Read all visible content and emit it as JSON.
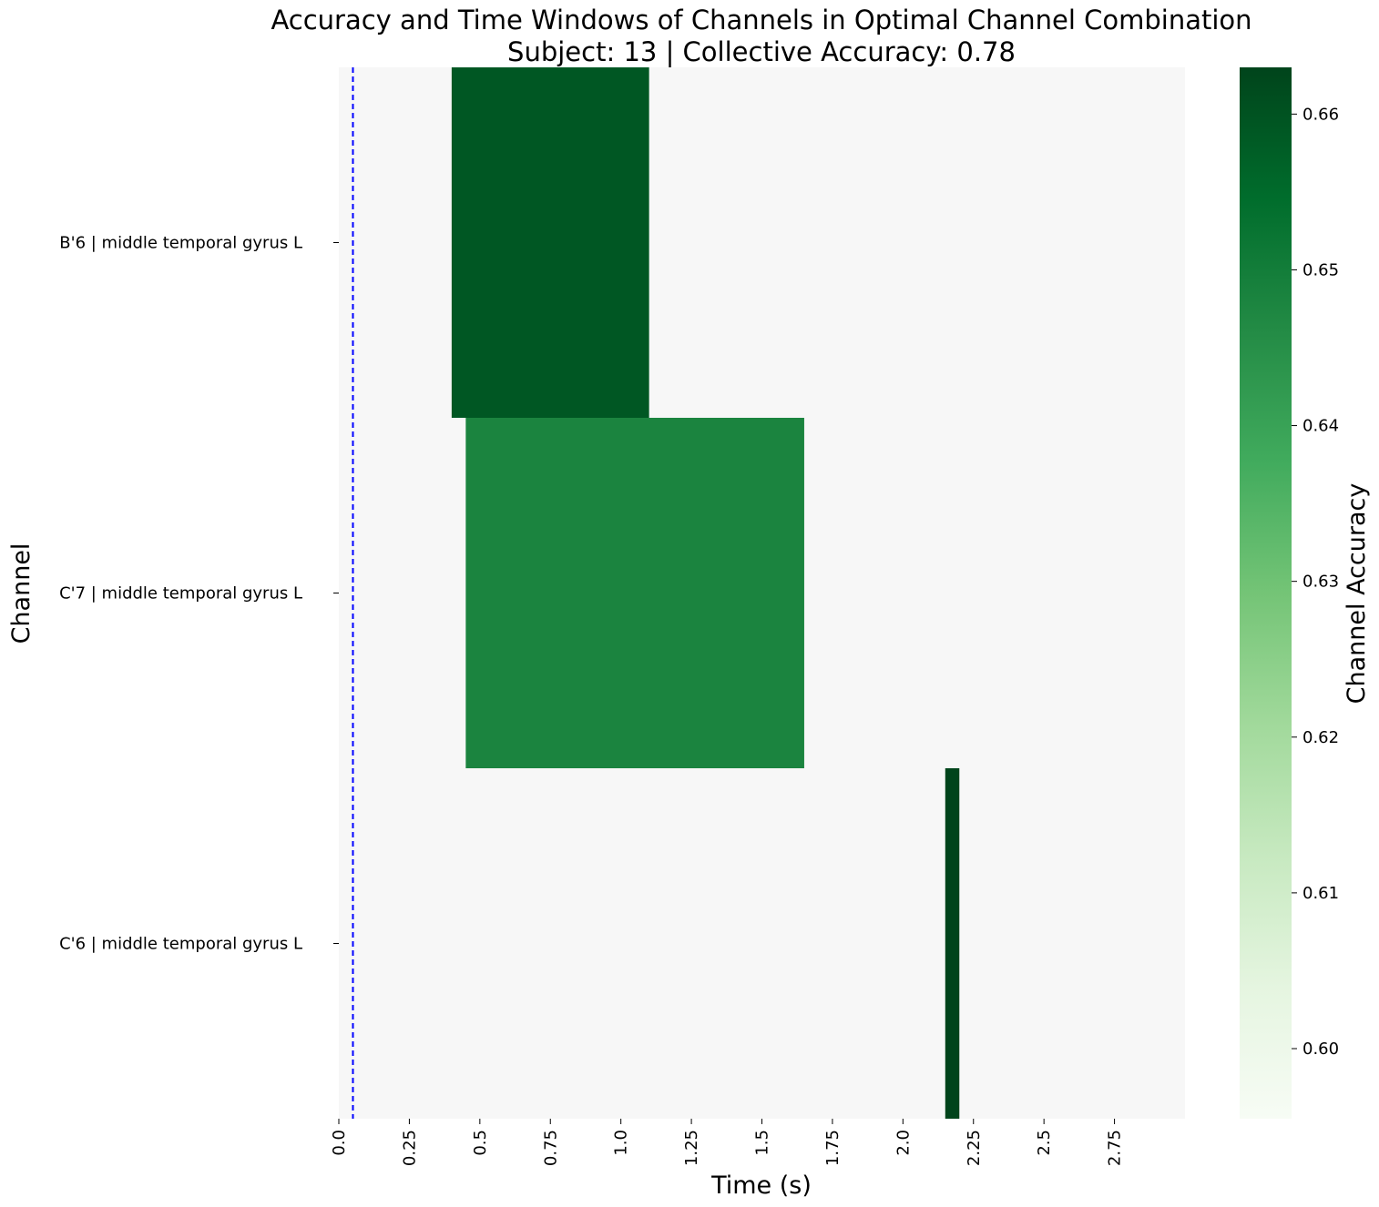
{
  "chart_data": {
    "type": "heatmap",
    "title": "Accuracy and Time Windows of Channels in Optimal Channel Combination",
    "subtitle": "Subject: 13 | Collective Accuracy: 0.78",
    "xlabel": "Time (s)",
    "ylabel": "Channel",
    "xlim": [
      0,
      3.0
    ],
    "x_ticks": [
      0.0,
      0.25,
      0.5,
      0.75,
      1.0,
      1.25,
      1.5,
      1.75,
      2.0,
      2.25,
      2.5,
      2.75
    ],
    "x_tick_labels": [
      "0.0",
      "0.25",
      "0.5",
      "0.75",
      "1.0",
      "1.25",
      "1.5",
      "1.75",
      "2.0",
      "2.25",
      "2.5",
      "2.75"
    ],
    "channels": [
      "B'6 | middle temporal gyrus L",
      "C'7 | middle temporal gyrus L",
      "C'6 | middle temporal gyrus L"
    ],
    "windows": [
      {
        "channel": "B'6 | middle temporal gyrus L",
        "start": 0.4,
        "end": 1.1,
        "accuracy": 0.659
      },
      {
        "channel": "C'7 | middle temporal gyrus L",
        "start": 0.45,
        "end": 1.65,
        "accuracy": 0.648
      },
      {
        "channel": "C'6 | middle temporal gyrus L",
        "start": 2.15,
        "end": 2.2,
        "accuracy": 0.663
      }
    ],
    "reference_line": {
      "x": 0.05,
      "style": "dashed",
      "color": "#0000ff"
    },
    "colorbar": {
      "label": "Channel Accuracy",
      "range": [
        0.5955,
        0.663
      ],
      "ticks": [
        0.6,
        0.61,
        0.62,
        0.63,
        0.64,
        0.65,
        0.66
      ],
      "tick_labels": [
        "0.60",
        "0.61",
        "0.62",
        "0.63",
        "0.64",
        "0.65",
        "0.66"
      ],
      "colormap": "Greens",
      "colors": [
        "#f7fcf5",
        "#e5f5e0",
        "#c7e9c0",
        "#a1d99b",
        "#74c476",
        "#41ab5d",
        "#238b45",
        "#006d2c",
        "#00441b"
      ]
    },
    "background_color": "#f7f7f7",
    "grid": false
  }
}
